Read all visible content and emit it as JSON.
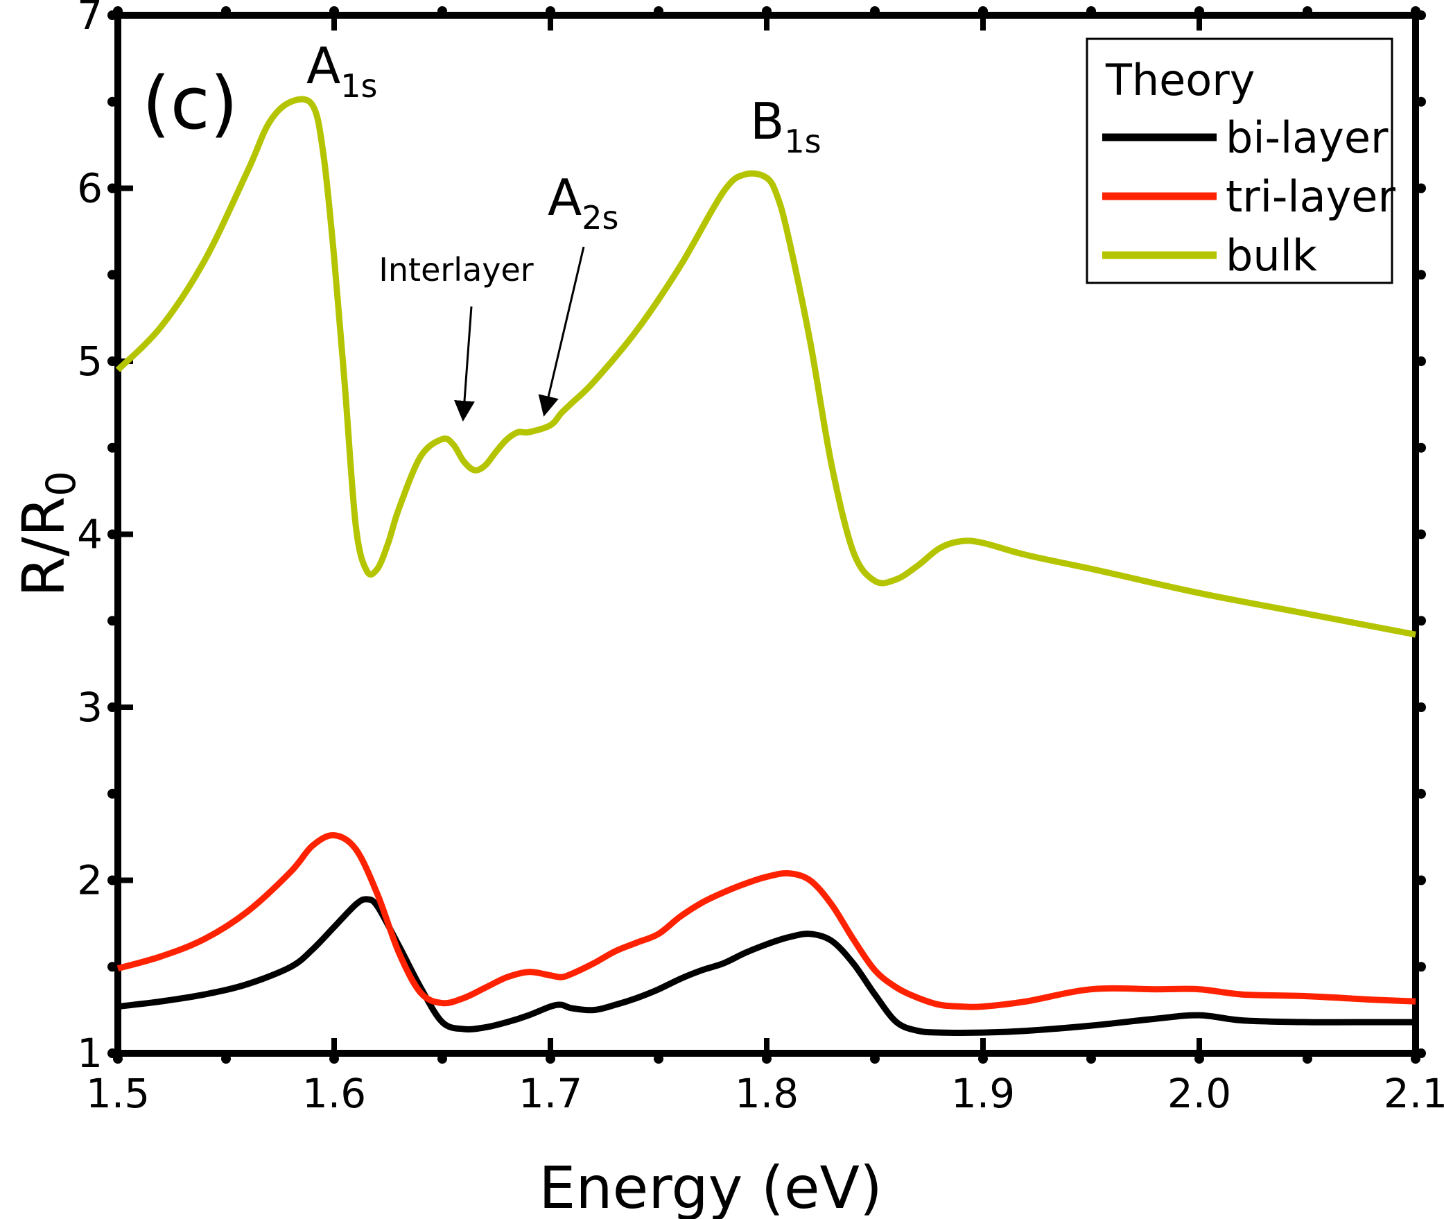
{
  "chart_data": {
    "type": "line",
    "panel_label": "(c)",
    "xlabel": "Energy (eV)",
    "ylabel": {
      "main": "R/R",
      "sub": "0"
    },
    "xlim": [
      1.5,
      2.1
    ],
    "ylim": [
      1,
      7
    ],
    "xticks": [
      1.5,
      1.6,
      1.7,
      1.8,
      1.9,
      2.0,
      2.1
    ],
    "xtick_labels": [
      "1.5",
      "1.6",
      "1.7",
      "1.8",
      "1.9",
      "2.0",
      "2.1"
    ],
    "yticks": [
      1,
      2,
      3,
      4,
      5,
      6,
      7
    ],
    "ytick_labels": [
      "1",
      "2",
      "3",
      "4",
      "5",
      "6",
      "7"
    ],
    "legend": {
      "title": "Theory",
      "position": "top-right"
    },
    "series": [
      {
        "name": "bi-layer",
        "color": "#000000",
        "x": [
          1.5,
          1.52,
          1.54,
          1.56,
          1.58,
          1.59,
          1.6,
          1.61,
          1.615,
          1.62,
          1.63,
          1.64,
          1.65,
          1.66,
          1.67,
          1.68,
          1.69,
          1.7,
          1.705,
          1.71,
          1.72,
          1.73,
          1.74,
          1.75,
          1.76,
          1.77,
          1.78,
          1.79,
          1.8,
          1.81,
          1.82,
          1.83,
          1.84,
          1.85,
          1.86,
          1.87,
          1.88,
          1.9,
          1.92,
          1.95,
          1.98,
          2.0,
          2.02,
          2.05,
          2.08,
          2.1
        ],
        "y": [
          1.27,
          1.3,
          1.34,
          1.4,
          1.5,
          1.6,
          1.73,
          1.86,
          1.89,
          1.85,
          1.62,
          1.38,
          1.18,
          1.14,
          1.15,
          1.18,
          1.22,
          1.27,
          1.28,
          1.26,
          1.25,
          1.28,
          1.32,
          1.37,
          1.43,
          1.48,
          1.52,
          1.58,
          1.63,
          1.67,
          1.69,
          1.65,
          1.52,
          1.34,
          1.18,
          1.13,
          1.12,
          1.12,
          1.13,
          1.16,
          1.2,
          1.22,
          1.19,
          1.18,
          1.18,
          1.18
        ]
      },
      {
        "name": "tri-layer",
        "color": "#ff2200",
        "x": [
          1.5,
          1.52,
          1.54,
          1.56,
          1.58,
          1.59,
          1.6,
          1.61,
          1.62,
          1.63,
          1.64,
          1.65,
          1.66,
          1.67,
          1.68,
          1.69,
          1.7,
          1.705,
          1.71,
          1.72,
          1.73,
          1.74,
          1.75,
          1.76,
          1.77,
          1.78,
          1.79,
          1.8,
          1.81,
          1.82,
          1.83,
          1.84,
          1.85,
          1.86,
          1.87,
          1.88,
          1.89,
          1.9,
          1.92,
          1.95,
          1.98,
          2.0,
          2.02,
          2.05,
          2.08,
          2.1
        ],
        "y": [
          1.49,
          1.56,
          1.66,
          1.82,
          2.05,
          2.2,
          2.26,
          2.18,
          1.92,
          1.58,
          1.35,
          1.29,
          1.32,
          1.38,
          1.44,
          1.47,
          1.45,
          1.44,
          1.46,
          1.52,
          1.59,
          1.64,
          1.69,
          1.79,
          1.87,
          1.93,
          1.98,
          2.02,
          2.04,
          2.0,
          1.86,
          1.66,
          1.48,
          1.38,
          1.32,
          1.28,
          1.27,
          1.27,
          1.3,
          1.37,
          1.37,
          1.37,
          1.34,
          1.33,
          1.31,
          1.3
        ]
      },
      {
        "name": "bulk",
        "color": "#b5c400",
        "x": [
          1.5,
          1.52,
          1.54,
          1.56,
          1.57,
          1.58,
          1.59,
          1.595,
          1.6,
          1.605,
          1.61,
          1.615,
          1.62,
          1.625,
          1.63,
          1.64,
          1.65,
          1.655,
          1.66,
          1.665,
          1.67,
          1.675,
          1.68,
          1.685,
          1.69,
          1.7,
          1.705,
          1.71,
          1.72,
          1.74,
          1.76,
          1.78,
          1.79,
          1.8,
          1.805,
          1.81,
          1.82,
          1.83,
          1.84,
          1.85,
          1.86,
          1.87,
          1.88,
          1.89,
          1.9,
          1.92,
          1.95,
          2.0,
          2.05,
          2.1
        ],
        "y": [
          4.95,
          5.2,
          5.58,
          6.1,
          6.38,
          6.5,
          6.48,
          6.2,
          5.6,
          4.85,
          4.05,
          3.79,
          3.8,
          3.95,
          4.15,
          4.45,
          4.55,
          4.52,
          4.42,
          4.37,
          4.4,
          4.48,
          4.55,
          4.59,
          4.59,
          4.63,
          4.7,
          4.76,
          4.88,
          5.18,
          5.55,
          5.98,
          6.08,
          6.06,
          5.95,
          5.72,
          5.12,
          4.4,
          3.9,
          3.73,
          3.74,
          3.82,
          3.92,
          3.96,
          3.95,
          3.88,
          3.8,
          3.66,
          3.54,
          3.42
        ]
      }
    ],
    "annotations": [
      {
        "name": "A1s",
        "main": "A",
        "sub": "1s",
        "x": 1.595,
        "y": 6.5
      },
      {
        "name": "B1s",
        "main": "B",
        "sub": "1s",
        "x": 1.805,
        "y": 6.06
      },
      {
        "name": "A2s",
        "main": "A",
        "sub": "2s",
        "x": 1.695,
        "y": 4.59
      },
      {
        "name": "Interlayer",
        "text": "Interlayer",
        "x": 1.66,
        "y": 4.55
      }
    ]
  }
}
